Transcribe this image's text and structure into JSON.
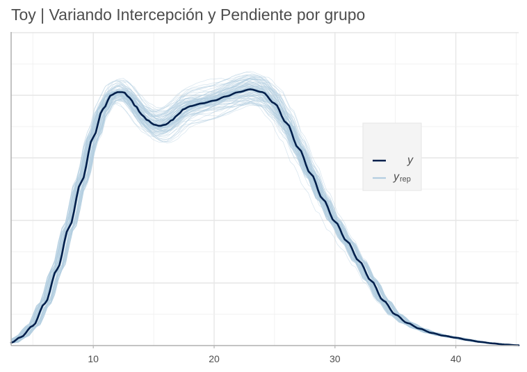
{
  "chart_data": {
    "type": "line",
    "title": "Toy | Variando Intercepción y Pendiente por grupo",
    "xlabel": "",
    "ylabel": "",
    "xlim": [
      3.2,
      45.2
    ],
    "ylim": [
      0,
      1
    ],
    "x_ticks": [
      10,
      20,
      30,
      40
    ],
    "x_tick_labels": [
      "10",
      "20",
      "30",
      "40"
    ],
    "grid": true,
    "legend_position": "right",
    "legend": [
      {
        "label": "y",
        "subscript": "",
        "color": "#011f4b"
      },
      {
        "label": "y",
        "subscript": "rep",
        "color": "#b3cde0"
      }
    ],
    "series": [
      {
        "name": "y",
        "color": "#011f4b",
        "x": [
          3.2,
          4,
          5,
          6,
          7,
          8,
          9,
          10,
          10.8,
          11.5,
          12,
          12.5,
          13,
          13.5,
          14,
          14.5,
          15,
          15.5,
          16,
          16.5,
          17,
          17.5,
          18,
          19,
          20,
          21,
          22,
          23,
          24,
          25,
          26,
          27,
          28,
          29,
          30,
          31,
          32,
          33,
          34,
          35,
          36,
          37,
          38,
          39,
          40,
          41,
          42,
          43,
          44,
          45.2
        ],
        "y": [
          0.01,
          0.03,
          0.07,
          0.15,
          0.27,
          0.42,
          0.58,
          0.74,
          0.84,
          0.89,
          0.9,
          0.9,
          0.88,
          0.85,
          0.82,
          0.8,
          0.785,
          0.78,
          0.785,
          0.8,
          0.82,
          0.84,
          0.85,
          0.86,
          0.87,
          0.885,
          0.9,
          0.91,
          0.9,
          0.86,
          0.79,
          0.7,
          0.61,
          0.52,
          0.44,
          0.37,
          0.3,
          0.23,
          0.16,
          0.11,
          0.08,
          0.06,
          0.045,
          0.035,
          0.028,
          0.02,
          0.013,
          0.008,
          0.004,
          0.001
        ]
      }
    ],
    "replicates": {
      "name": "yrep",
      "color": "#b3cde0",
      "count": 100
    }
  }
}
